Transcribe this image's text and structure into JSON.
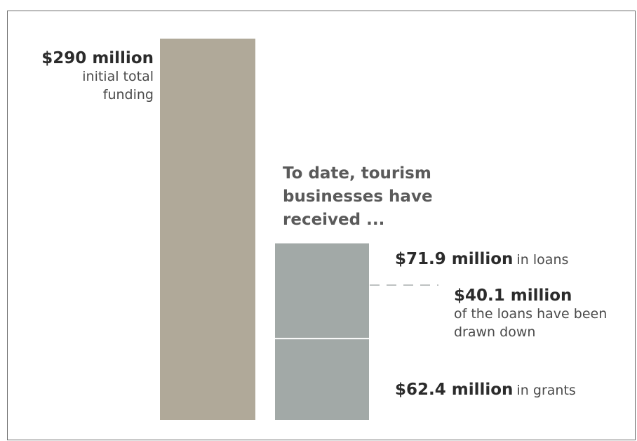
{
  "chart_data": {
    "type": "bar",
    "unit": "million",
    "total": {
      "value": 290,
      "amount_label": "$290 million",
      "description": "initial total funding",
      "color": "#b0a999"
    },
    "heading": "To date, tourism businesses have received ...",
    "received": {
      "color": "#a2a9a7",
      "segments": [
        {
          "id": "grants",
          "value": 62.4,
          "amount_label": "$62.4 million",
          "suffix": "in grants"
        },
        {
          "id": "loans",
          "value": 71.9,
          "amount_label": "$71.9 million",
          "suffix": "in loans"
        }
      ],
      "loans_drawn_down": {
        "value": 40.1,
        "amount_label": "$40.1 million",
        "description": "of the loans have been drawn down"
      }
    }
  }
}
